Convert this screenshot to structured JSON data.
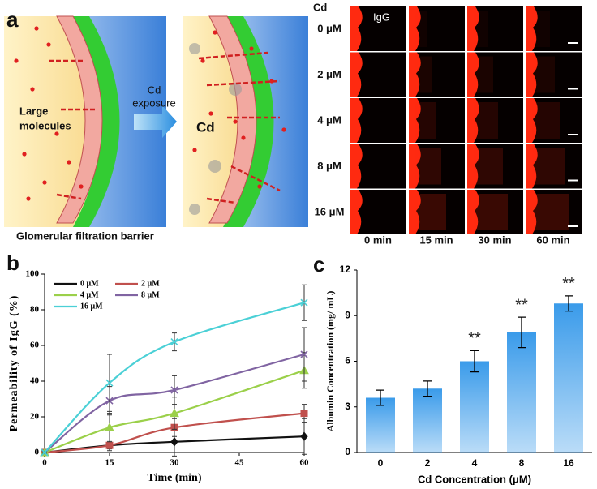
{
  "panel_a": {
    "label": "a",
    "large_molecules": [
      "Large",
      "molecules"
    ],
    "exposure": [
      "Cd",
      "exposure"
    ],
    "cd": "Cd",
    "barrier": "Glomerular filtration barrier"
  },
  "microscopy": {
    "header": "Cd",
    "stain": "IgG",
    "rows": [
      "0 μM",
      "2 μM",
      "4 μM",
      "8 μM",
      "16 μM"
    ],
    "columns": [
      "0 min",
      "15 min",
      "30 min",
      "60 min"
    ]
  },
  "chart_data": [
    {
      "type": "line",
      "panel": "b",
      "x_label": "Time (min)",
      "y_label": "Permeability of IgG (%)",
      "x": [
        0,
        15,
        30,
        60
      ],
      "xlim": [
        0,
        60
      ],
      "xticks": [
        0,
        15,
        30,
        45,
        60
      ],
      "ylim": [
        0,
        100
      ],
      "yticks": [
        0,
        20,
        40,
        60,
        80,
        100
      ],
      "legend": "upper left",
      "series": [
        {
          "name": "0 μM",
          "color": "#111111",
          "marker": "diamond",
          "values": [
            0,
            4,
            6,
            9
          ],
          "errors": [
            0.5,
            3,
            8,
            10
          ]
        },
        {
          "name": "2 μM",
          "color": "#c0504d",
          "marker": "square",
          "values": [
            0,
            4,
            14,
            22
          ],
          "errors": [
            0.5,
            2,
            5,
            5
          ]
        },
        {
          "name": "4 μM",
          "color": "#9bd04a",
          "marker": "triangle",
          "values": [
            0,
            14,
            22,
            46
          ],
          "errors": [
            0.5,
            8,
            9,
            10
          ]
        },
        {
          "name": "8 μM",
          "color": "#8064a2",
          "marker": "cross",
          "values": [
            0,
            29,
            35,
            55
          ],
          "errors": [
            0.5,
            8,
            8,
            15
          ]
        },
        {
          "name": "16 μM",
          "color": "#4bd0d6",
          "marker": "cross",
          "values": [
            0,
            39,
            62,
            84
          ],
          "errors": [
            0.5,
            16,
            5,
            10
          ]
        }
      ]
    },
    {
      "type": "bar",
      "panel": "c",
      "x_label": "Cd Concentration (μM)",
      "y_label": "Albumin Concentration (mg/ mL)",
      "categories": [
        "0",
        "2",
        "4",
        "8",
        "16"
      ],
      "values": [
        3.6,
        4.2,
        6.0,
        7.9,
        9.8
      ],
      "errors": [
        0.5,
        0.5,
        0.7,
        1.0,
        0.5
      ],
      "color": "#3a9bea",
      "ylim": [
        0,
        12
      ],
      "yticks": [
        0,
        3,
        6,
        9,
        12
      ],
      "annotations": [
        {
          "x": "4",
          "text": "**"
        },
        {
          "x": "8",
          "text": "**"
        },
        {
          "x": "16",
          "text": "**"
        }
      ]
    }
  ]
}
